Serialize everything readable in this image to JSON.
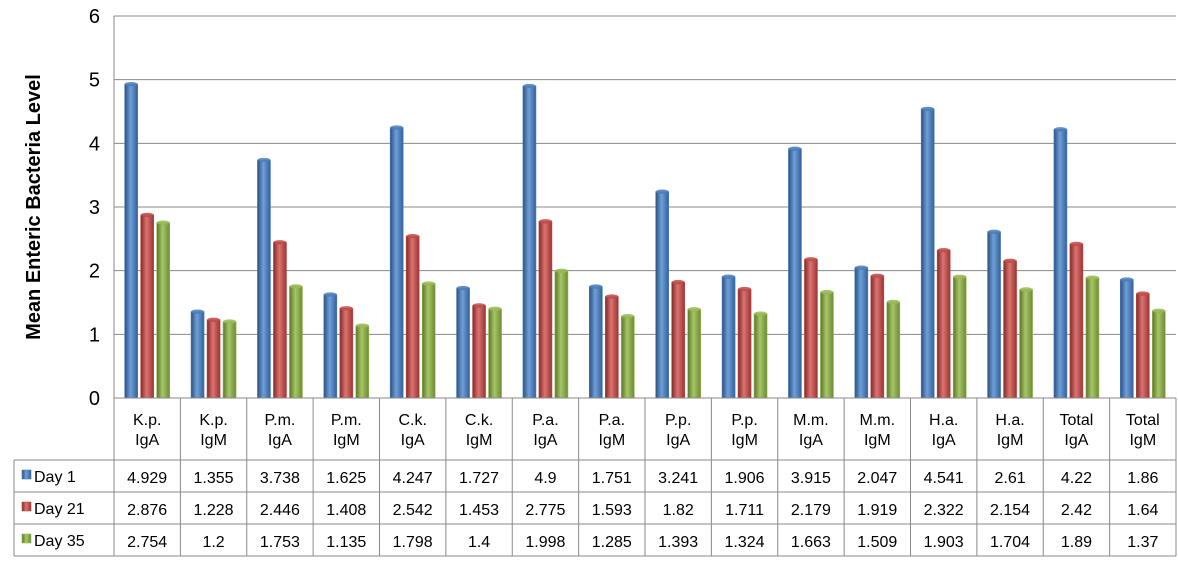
{
  "chart_data": {
    "type": "bar",
    "title": "",
    "xlabel": "",
    "ylabel": "Mean Enteric Bacteria Level",
    "ylim": [
      0,
      6
    ],
    "yticks": [
      0,
      1,
      2,
      3,
      4,
      5,
      6
    ],
    "grid": true,
    "legend": "data-table",
    "categories": [
      [
        "K.p.",
        "IgA"
      ],
      [
        "K.p.",
        "IgM"
      ],
      [
        "P.m.",
        "IgA"
      ],
      [
        "P.m.",
        "IgM"
      ],
      [
        "C.k.",
        "IgA"
      ],
      [
        "C.k.",
        "IgM"
      ],
      [
        "P.a.",
        "IgA"
      ],
      [
        "P.a.",
        "IgM"
      ],
      [
        "P.p.",
        "IgA"
      ],
      [
        "P.p.",
        "IgM"
      ],
      [
        "M.m.",
        "IgA"
      ],
      [
        "M.m.",
        "IgM"
      ],
      [
        "H.a.",
        "IgA"
      ],
      [
        "H.a.",
        "IgM"
      ],
      [
        "Total",
        "IgA"
      ],
      [
        "Total",
        "IgM"
      ]
    ],
    "series": [
      {
        "name": "Day 1",
        "color": "#4a7ebb",
        "values": [
          4.929,
          1.355,
          3.738,
          1.625,
          4.247,
          1.727,
          4.9,
          1.751,
          3.241,
          1.906,
          3.915,
          2.047,
          4.541,
          2.61,
          4.22,
          1.86
        ],
        "labels": [
          "4.929",
          "1.355",
          "3.738",
          "1.625",
          "4.247",
          "1.727",
          "4.9",
          "1.751",
          "3.241",
          "1.906",
          "3.915",
          "2.047",
          "4.541",
          "2.61",
          "4.22",
          "1.86"
        ]
      },
      {
        "name": "Day 21",
        "color": "#be4b48",
        "values": [
          2.876,
          1.228,
          2.446,
          1.408,
          2.542,
          1.453,
          2.775,
          1.593,
          1.82,
          1.711,
          2.179,
          1.919,
          2.322,
          2.154,
          2.42,
          1.64
        ],
        "labels": [
          "2.876",
          "1.228",
          "2.446",
          "1.408",
          "2.542",
          "1.453",
          "2.775",
          "1.593",
          "1.82",
          "1.711",
          "2.179",
          "1.919",
          "2.322",
          "2.154",
          "2.42",
          "1.64"
        ]
      },
      {
        "name": "Day 35",
        "color": "#98b954",
        "values": [
          2.754,
          1.2,
          1.753,
          1.135,
          1.798,
          1.4,
          1.998,
          1.285,
          1.393,
          1.324,
          1.663,
          1.509,
          1.903,
          1.704,
          1.89,
          1.37
        ],
        "labels": [
          "2.754",
          "1.2",
          "1.753",
          "1.135",
          "1.798",
          "1.4",
          "1.998",
          "1.285",
          "1.393",
          "1.324",
          "1.663",
          "1.509",
          "1.903",
          "1.704",
          "1.89",
          "1.37"
        ]
      }
    ]
  }
}
